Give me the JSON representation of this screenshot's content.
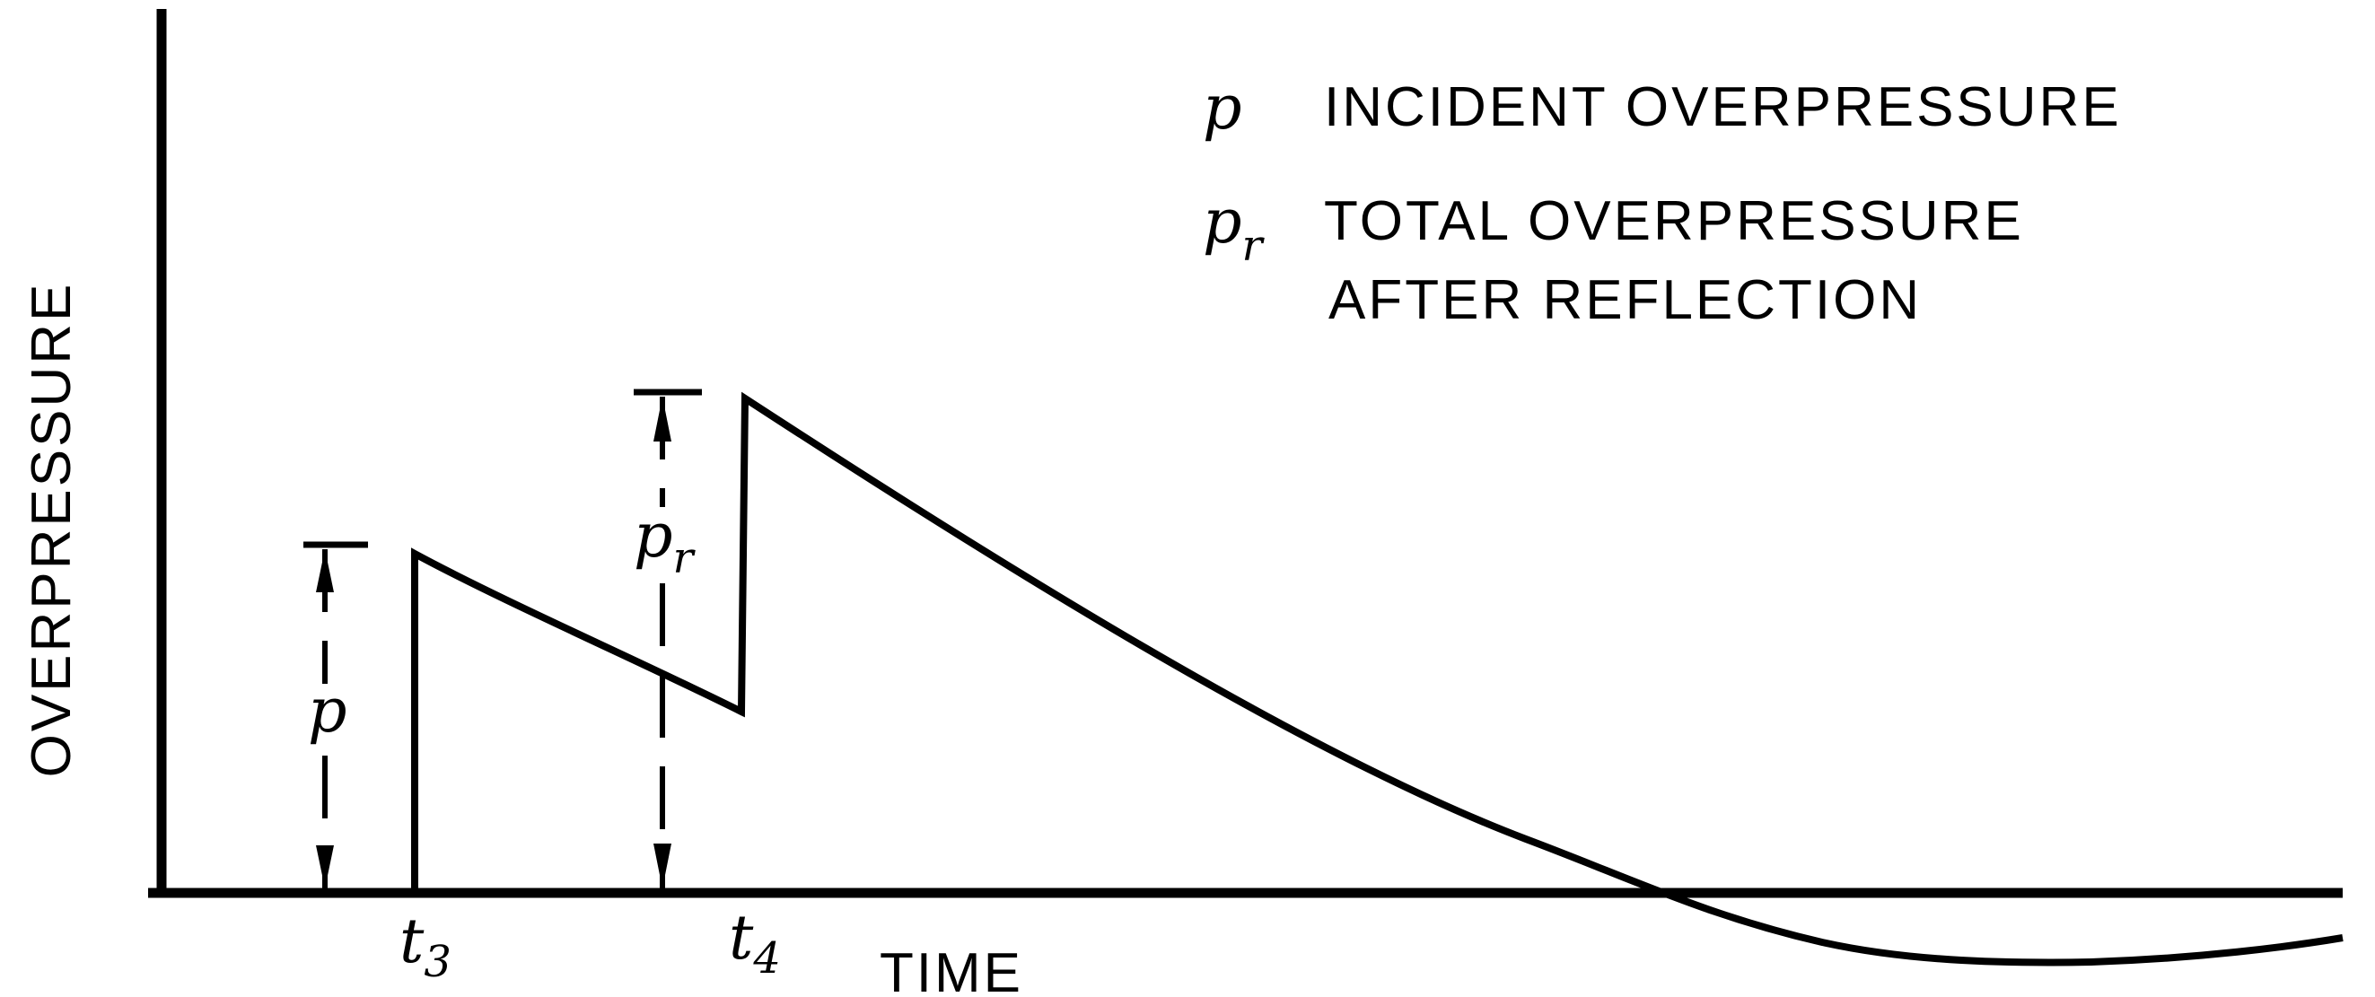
{
  "chart_data": {
    "type": "line",
    "xlabel": "TIME",
    "ylabel": "OVERPRESSURE",
    "x_ticks": [
      {
        "base": "t",
        "sub": "3"
      },
      {
        "base": "t",
        "sub": "4"
      }
    ],
    "legend": [
      {
        "symbol": "p",
        "sub": "",
        "lines": [
          "INCIDENT OVERPRESSURE"
        ]
      },
      {
        "symbol": "p",
        "sub": "r",
        "lines": [
          "TOTAL OVERPRESSURE",
          "AFTER REFLECTION"
        ]
      }
    ],
    "dimension_markers": [
      {
        "symbol": "p",
        "sub": "",
        "value": 0.38
      },
      {
        "symbol": "p",
        "sub": "r",
        "value": 0.56
      }
    ],
    "legend_position": "top-right",
    "grid": false,
    "colors": {
      "ink": "#000000",
      "background": "#ffffff"
    }
  }
}
